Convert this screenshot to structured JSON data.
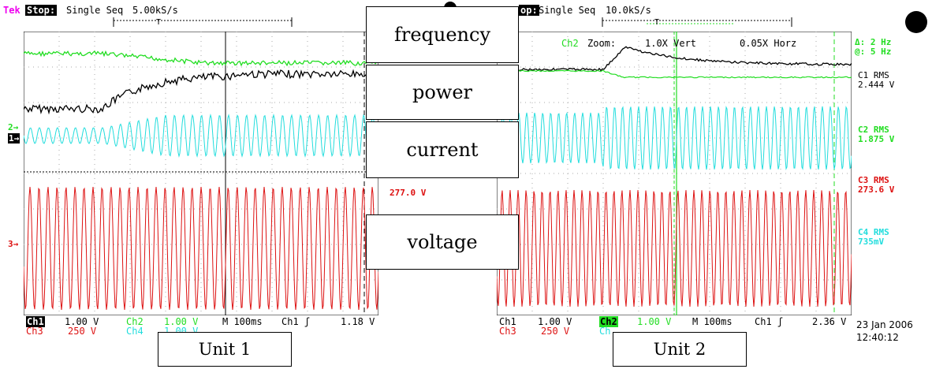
{
  "colors": {
    "ch1": "#000000",
    "ch2": "#22dd22",
    "ch3": "#dd1111",
    "ch4": "#22dddd",
    "mag": "#ee00ee"
  },
  "unit1": {
    "header_brand": "Tek",
    "header_stop": "Stop:",
    "header_mode": "Single Seq",
    "header_rate": "5.00kS/s",
    "ch1_tag": "Ch1",
    "ch1_scale": "1.00 V",
    "ch2_tag": "Ch2",
    "ch2_scale": "1.00 V",
    "ch3_tag": "Ch3",
    "ch3_scale": "250 V",
    "ch4_tag": "Ch4",
    "ch4_scale": "1.00 V",
    "timebase": "M 100ms",
    "trigger": "Ch1 ʃ",
    "trigger_level": "1.18 V",
    "marker2": "2→",
    "marker1": "1→",
    "marker3": "3→",
    "ch3_rms": "277.0 V",
    "unit_label": "Unit 1"
  },
  "unit2": {
    "header_stop": "op:",
    "header_mode": "Single Seq",
    "header_rate": "10.0kS/s",
    "zoom_ch": "Ch2",
    "zoom_label": "Zoom:",
    "zoom_vert": "1.0X Vert",
    "zoom_horz": "0.05X Horz",
    "delta": "Δ: 2 Hz",
    "at": "@: 5 Hz",
    "c1_rms_label": "C1 RMS",
    "c1_rms": "2.444 V",
    "c2_rms_label": "C2 RMS",
    "c2_rms": "1.875 V",
    "c3_rms_label": "C3 RMS",
    "c3_rms": "273.6 V",
    "c4_rms_label": "C4 RMS",
    "c4_rms": "735mV",
    "ch1_tag": "Ch1",
    "ch1_scale": "1.00 V",
    "ch2_tag": "Ch2",
    "ch2_scale": "1.00 V",
    "ch3_tag": "Ch3",
    "ch3_scale": "250 V",
    "ch4_tag": "Ch",
    "timebase": "M 100ms",
    "trigger": "Ch1 ʃ",
    "trigger_level": "2.36 V",
    "date": "23 Jan 2006",
    "time": "12:40:12",
    "unit_label": "Unit 2"
  },
  "labels": {
    "frequency": "frequency",
    "power": "power",
    "current": "current",
    "voltage": "voltage"
  },
  "chart_data": [
    {
      "type": "line",
      "scope": "Unit 1",
      "timebase": "100ms/div",
      "sample_rate": "5.00kS/s",
      "series": [
        {
          "name": "Ch1",
          "scale": "1.00 V/div"
        },
        {
          "name": "Ch2",
          "scale": "1.00 V/div"
        },
        {
          "name": "Ch3",
          "scale": "250 V/div",
          "rms": "277.0 V"
        },
        {
          "name": "Ch4",
          "scale": "1.00 V/div"
        }
      ]
    },
    {
      "type": "line",
      "scope": "Unit 2",
      "timebase": "100ms/div",
      "sample_rate": "10.0kS/s",
      "series": [
        {
          "name": "Ch1",
          "scale": "1.00 V/div",
          "rms": "2.444 V"
        },
        {
          "name": "Ch2",
          "scale": "1.00 V/div",
          "rms": "1.875 V"
        },
        {
          "name": "Ch3",
          "scale": "250 V/div",
          "rms": "273.6 V"
        },
        {
          "name": "Ch4",
          "rms": "735mV"
        }
      ],
      "cursor_delta": "2 Hz",
      "cursor_at": "5 Hz"
    }
  ]
}
